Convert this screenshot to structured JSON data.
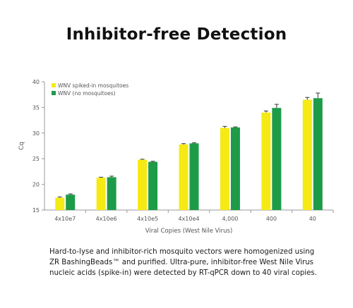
{
  "title": "Inhibitor-free Detection",
  "caption": [
    "Hard-to-lyse and inhibitor-rich mosquito vectors were homogenized using",
    "ZR BashingBeads™ and purified. Ultra-pure, inhibitor-free West Nile Virus",
    "nucleic acids (spike-in) were detected by RT-qPCR down to 40 viral copies."
  ],
  "colors": {
    "series1": "#f5ea14",
    "series2": "#1e9b48",
    "axis": "#9a9a9a",
    "text": "#555555"
  },
  "chart_data": {
    "type": "bar",
    "categories": [
      "4x10e7",
      "4x10e6",
      "4x10e5",
      "4x10e4",
      "4,000",
      "400",
      "40"
    ],
    "series": [
      {
        "name": "WNV spiked-in mosquitoes",
        "values": [
          17.4,
          21.3,
          24.8,
          27.8,
          31.0,
          34.0,
          36.5
        ],
        "errors": [
          0.15,
          0.1,
          0.1,
          0.15,
          0.3,
          0.3,
          0.45
        ]
      },
      {
        "name": "WNV (no mosquitoes)",
        "values": [
          18.0,
          21.4,
          24.4,
          28.0,
          31.1,
          34.9,
          36.8
        ],
        "errors": [
          0.15,
          0.2,
          0.1,
          0.1,
          0.1,
          0.7,
          1.0
        ]
      }
    ],
    "xlabel": "Viral Copies (West Nile Virus)",
    "ylabel": "Cq",
    "ylim": [
      15,
      40
    ],
    "yticks": [
      15,
      20,
      25,
      30,
      35,
      40
    ],
    "legend_position": "top-left",
    "grid": false
  }
}
